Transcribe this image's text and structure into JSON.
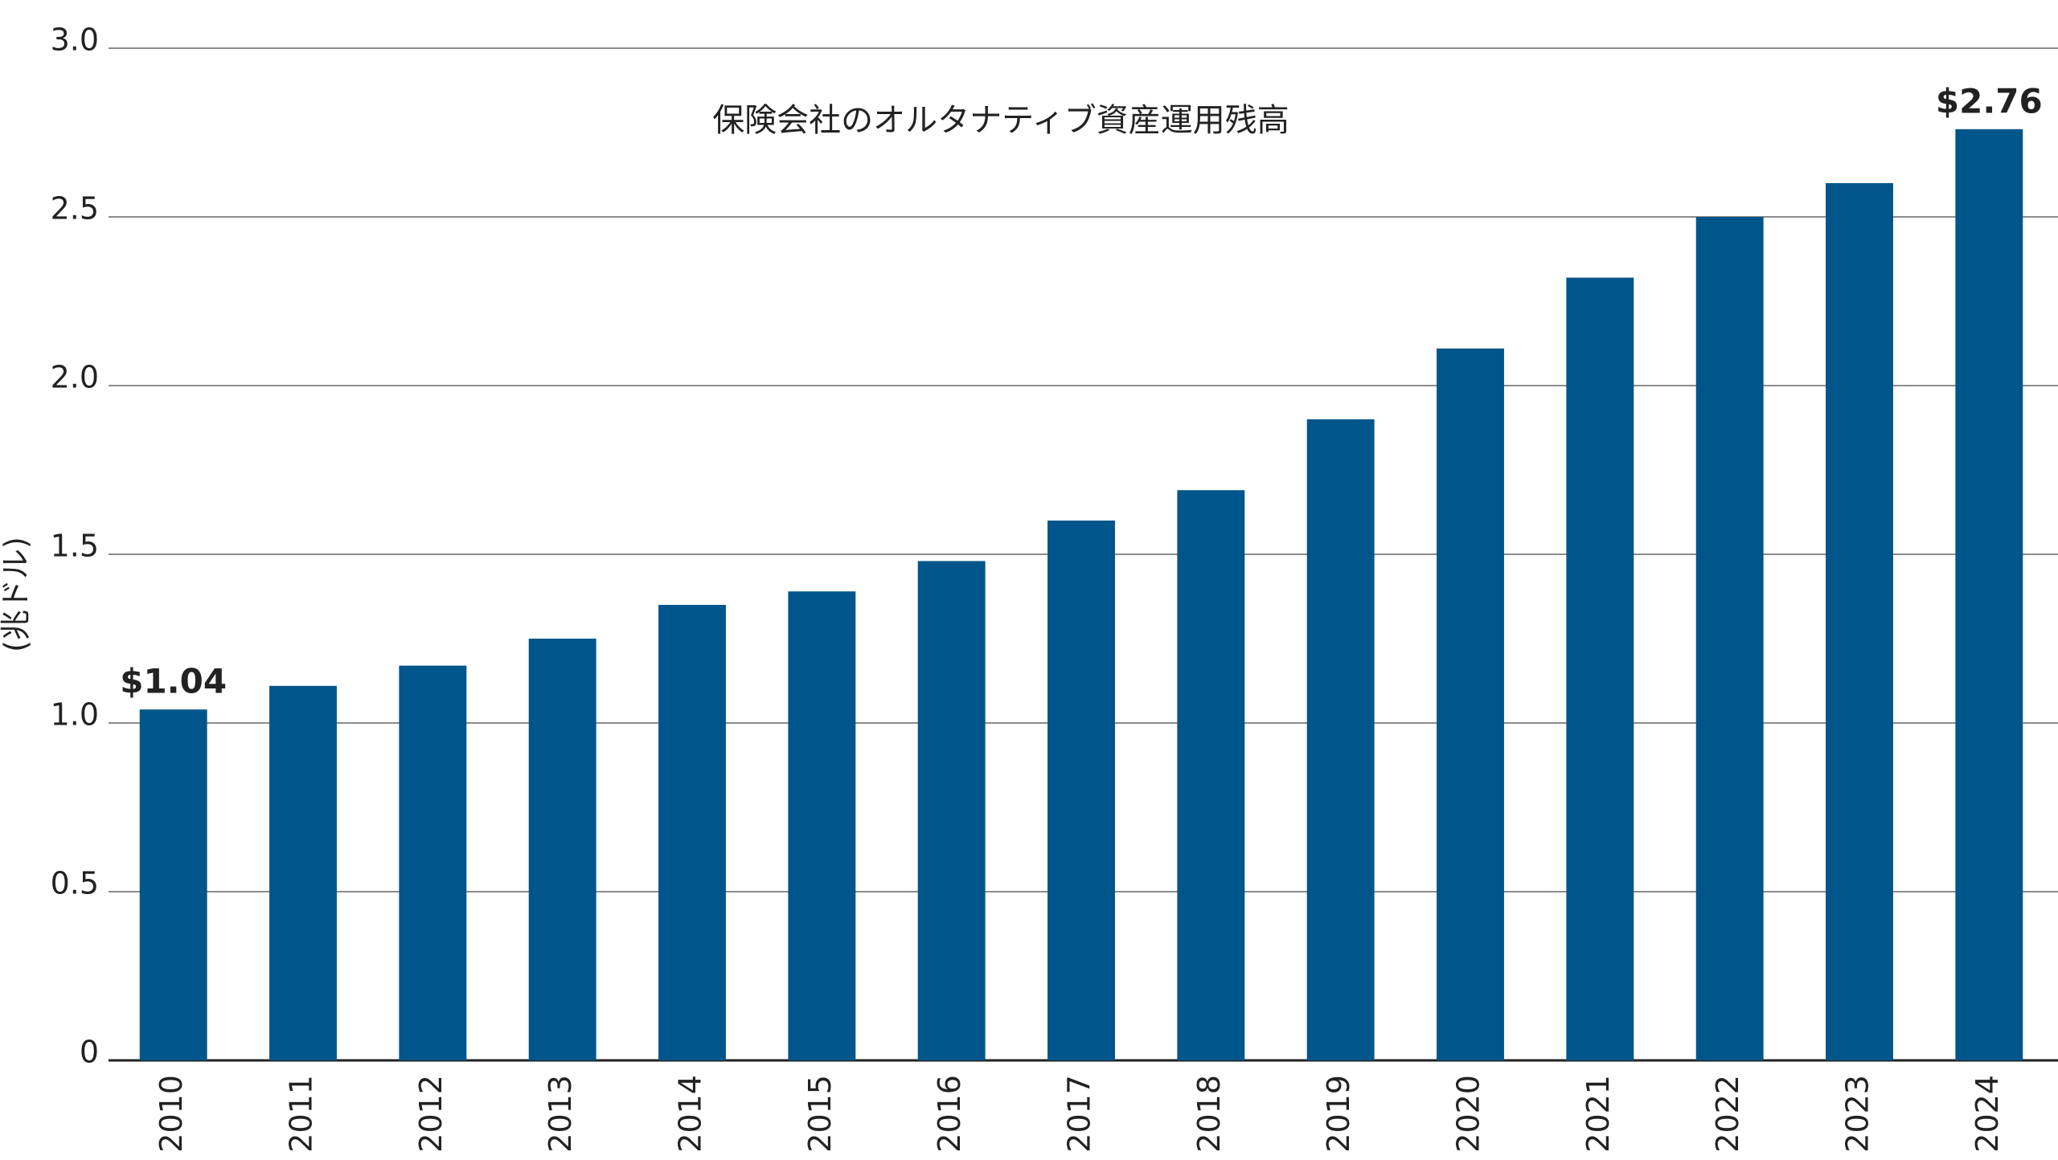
{
  "chart_data": {
    "type": "bar",
    "title": "保険会社のオルタナティブ資産運用残高",
    "y_label": "(兆ドル)",
    "categories": [
      "2010",
      "2011",
      "2012",
      "2013",
      "2014",
      "2015",
      "2016",
      "2017",
      "2018",
      "2019",
      "2020",
      "2021",
      "2022",
      "2023",
      "2024"
    ],
    "values": [
      1.04,
      1.11,
      1.17,
      1.25,
      1.35,
      1.39,
      1.48,
      1.6,
      1.69,
      1.9,
      2.11,
      2.32,
      2.5,
      2.6,
      2.76
    ],
    "value_labels": [
      "$1.04",
      null,
      null,
      null,
      null,
      null,
      null,
      null,
      null,
      null,
      null,
      null,
      null,
      null,
      "$2.76"
    ],
    "color": "#00558a",
    "ylim": [
      0,
      3
    ],
    "yticks": [
      0,
      0.5,
      {
        "value": 1,
        "label": "1.0"
      },
      1.5,
      {
        "value": 2,
        "label": "2.0"
      },
      2.5,
      {
        "value": 3,
        "label": "3.0"
      }
    ],
    "grid": true
  }
}
